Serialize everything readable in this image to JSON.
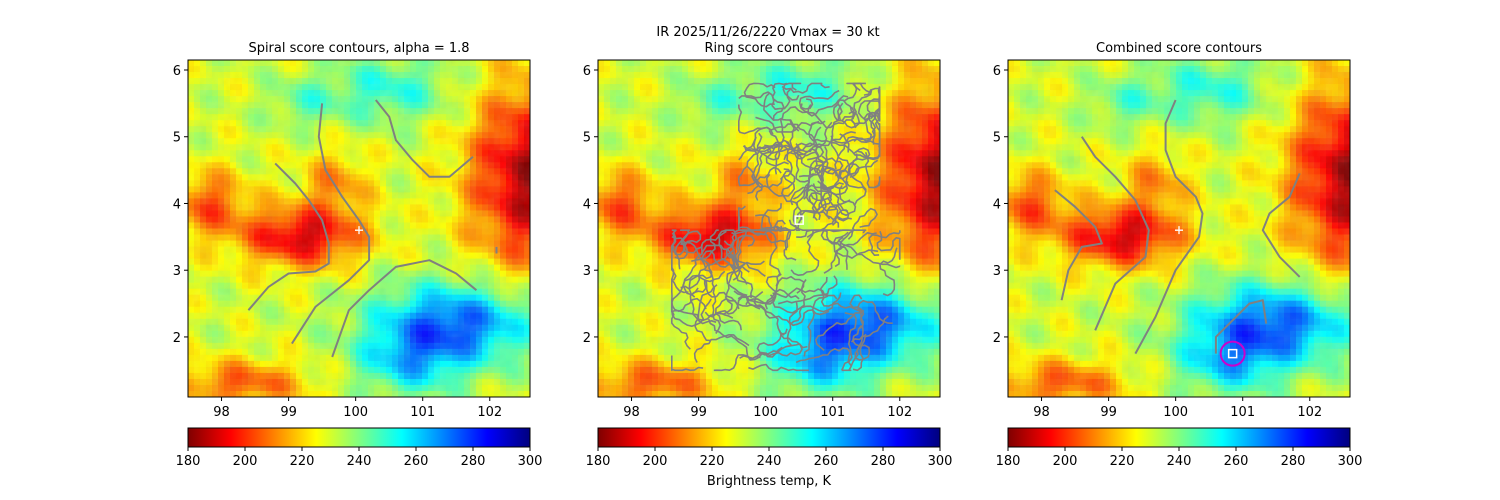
{
  "figure": {
    "suptitle_line1": "IR  2025/11/26/2220    Vmax = 30 kt"
  },
  "colorbar": {
    "label": "Brightness temp, K",
    "ticks": [
      180,
      200,
      220,
      240,
      260,
      280,
      300
    ],
    "range": [
      180,
      300
    ],
    "colormap": "jet_r",
    "stops": [
      "#7f0000",
      "#ff0000",
      "#ff8000",
      "#ffff00",
      "#80ff80",
      "#00ffff",
      "#0080ff",
      "#0000ff",
      "#00007f"
    ]
  },
  "chart_data": [
    {
      "type": "heatmap",
      "title": "Spiral score contours, alpha =  1.8",
      "xlim": [
        97.5,
        102.6
      ],
      "ylim": [
        1.1,
        6.15
      ],
      "xticks": [
        98,
        99,
        100,
        101,
        102
      ],
      "yticks": [
        2,
        3,
        4,
        5,
        6
      ],
      "center_marker": {
        "symbol": "plus",
        "color": "#ffffff",
        "x": 100.05,
        "y": 3.6
      },
      "contour_color": "#808080",
      "contours": [
        [
          [
            98.8,
            4.6
          ],
          [
            99.1,
            4.3
          ],
          [
            99.3,
            4.05
          ],
          [
            99.5,
            3.75
          ],
          [
            99.6,
            3.4
          ],
          [
            99.6,
            3.1
          ],
          [
            99.4,
            2.98
          ],
          [
            99.0,
            2.95
          ],
          [
            98.7,
            2.75
          ],
          [
            98.4,
            2.4
          ]
        ],
        [
          [
            99.5,
            5.5
          ],
          [
            99.45,
            5.0
          ],
          [
            99.55,
            4.5
          ],
          [
            99.8,
            4.1
          ],
          [
            100.05,
            3.75
          ],
          [
            100.2,
            3.5
          ],
          [
            100.2,
            3.15
          ],
          [
            99.9,
            2.85
          ],
          [
            99.4,
            2.45
          ],
          [
            99.05,
            1.9
          ]
        ],
        [
          [
            100.3,
            5.55
          ],
          [
            100.5,
            5.3
          ],
          [
            100.6,
            4.95
          ],
          [
            100.85,
            4.65
          ],
          [
            101.1,
            4.4
          ],
          [
            101.4,
            4.4
          ],
          [
            101.75,
            4.7
          ]
        ],
        [
          [
            101.8,
            2.7
          ],
          [
            101.5,
            2.95
          ],
          [
            101.1,
            3.15
          ],
          [
            100.6,
            3.05
          ],
          [
            100.2,
            2.7
          ],
          [
            99.9,
            2.4
          ],
          [
            99.65,
            1.7
          ]
        ],
        [
          [
            102.1,
            3.35
          ],
          [
            102.1,
            3.25
          ]
        ]
      ],
      "box_marker": null,
      "circle_marker": null
    },
    {
      "type": "heatmap",
      "title": "Ring score contours",
      "xlim": [
        97.5,
        102.6
      ],
      "ylim": [
        1.1,
        6.15
      ],
      "xticks": [
        98,
        99,
        100,
        101,
        102
      ],
      "yticks": [
        2,
        3,
        4,
        5,
        6
      ],
      "center_marker": null,
      "contour_color": "#808080",
      "contours": [],
      "dense_region": {
        "upper": {
          "x": [
            99.6,
            101.7
          ],
          "y": [
            3.6,
            5.8
          ]
        },
        "lower": {
          "x": [
            98.6,
            102.0
          ],
          "y": [
            1.5,
            3.6
          ]
        }
      },
      "box_marker": {
        "x": 100.5,
        "y": 3.75,
        "color": "#ffffff"
      },
      "circle_marker": null
    },
    {
      "type": "heatmap",
      "title": "Combined score contours",
      "xlim": [
        97.5,
        102.6
      ],
      "ylim": [
        1.1,
        6.15
      ],
      "xticks": [
        98,
        99,
        100,
        101,
        102
      ],
      "yticks": [
        2,
        3,
        4,
        5,
        6
      ],
      "center_marker": {
        "symbol": "plus",
        "color": "#ffffff",
        "x": 100.05,
        "y": 3.6
      },
      "contour_color": "#808080",
      "contours": [
        [
          [
            98.2,
            4.2
          ],
          [
            98.5,
            3.95
          ],
          [
            98.8,
            3.65
          ],
          [
            98.9,
            3.4
          ],
          [
            98.6,
            3.35
          ],
          [
            98.4,
            3.0
          ],
          [
            98.3,
            2.55
          ]
        ],
        [
          [
            98.6,
            5.0
          ],
          [
            98.8,
            4.7
          ],
          [
            99.1,
            4.4
          ],
          [
            99.4,
            4.05
          ],
          [
            99.6,
            3.6
          ],
          [
            99.55,
            3.2
          ],
          [
            99.1,
            2.8
          ],
          [
            98.8,
            2.1
          ]
        ],
        [
          [
            100.0,
            5.55
          ],
          [
            99.85,
            5.2
          ],
          [
            99.85,
            4.8
          ],
          [
            100.0,
            4.4
          ],
          [
            100.3,
            4.1
          ],
          [
            100.4,
            3.85
          ],
          [
            100.35,
            3.5
          ],
          [
            100.0,
            3.0
          ],
          [
            99.7,
            2.3
          ],
          [
            99.4,
            1.75
          ]
        ],
        [
          [
            101.85,
            4.45
          ],
          [
            101.7,
            4.1
          ],
          [
            101.4,
            3.85
          ],
          [
            101.3,
            3.6
          ],
          [
            101.55,
            3.2
          ],
          [
            101.85,
            2.9
          ]
        ],
        [
          [
            100.6,
            1.75
          ],
          [
            100.6,
            2.0
          ],
          [
            100.9,
            2.3
          ],
          [
            101.1,
            2.5
          ],
          [
            101.3,
            2.55
          ],
          [
            101.35,
            2.2
          ]
        ]
      ],
      "box_marker": {
        "x": 100.85,
        "y": 1.75,
        "color": "#ffffff"
      },
      "circle_marker": {
        "x": 100.85,
        "y": 1.75,
        "color": "#cc00cc"
      }
    }
  ]
}
